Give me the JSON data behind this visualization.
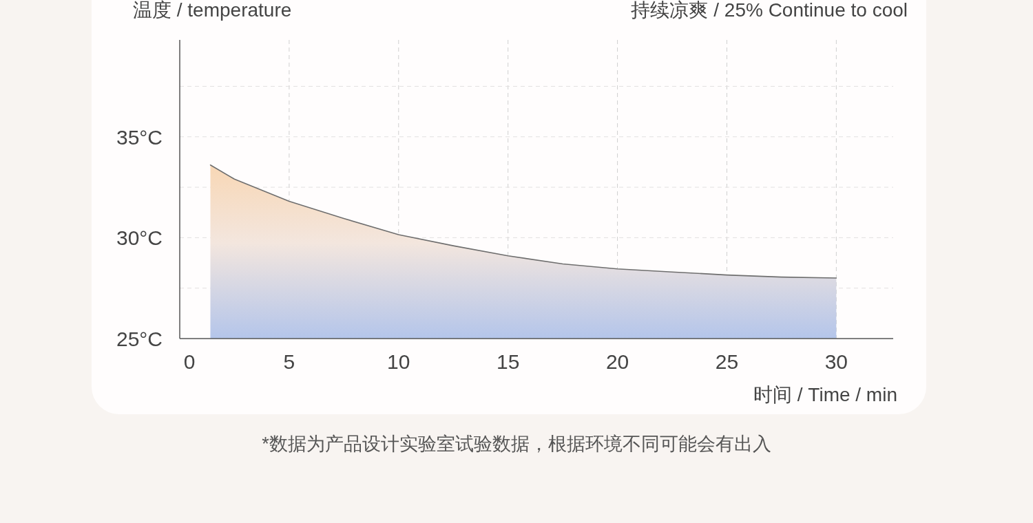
{
  "chart_data": {
    "type": "area",
    "title": "持续凉爽 / 25% Continue to cool",
    "ylabel": "温度 / temperature",
    "xlabel": "时间 / Time / min",
    "annotations": [
      "*数据为产品设计实验室试验数据，根据环境不同可能会有出入"
    ],
    "series": [
      {
        "color": "#b4c5ea",
        "x": [
          1.4,
          2.5,
          5,
          7.5,
          10,
          12.5,
          15,
          17.5,
          20,
          22.5,
          25,
          27.5,
          30
        ],
        "values": [
          33.6,
          32.9,
          31.8,
          30.95,
          30.15,
          29.6,
          29.1,
          28.7,
          28.45,
          28.3,
          28.15,
          28.05,
          28.0
        ]
      }
    ],
    "xlim": [
      0,
      32.6
    ],
    "ylim": [
      25,
      39.8
    ],
    "xticks": [
      0,
      5,
      10,
      15,
      20,
      25,
      30
    ],
    "yticks": [
      {
        "value": 25,
        "label": "25°C"
      },
      {
        "value": 27.5,
        "label": null
      },
      {
        "value": 30,
        "label": "30°C"
      },
      {
        "value": 32.5,
        "label": null
      },
      {
        "value": 35,
        "label": "35°C"
      },
      {
        "value": 37.5,
        "label": null
      }
    ],
    "grid": true
  }
}
